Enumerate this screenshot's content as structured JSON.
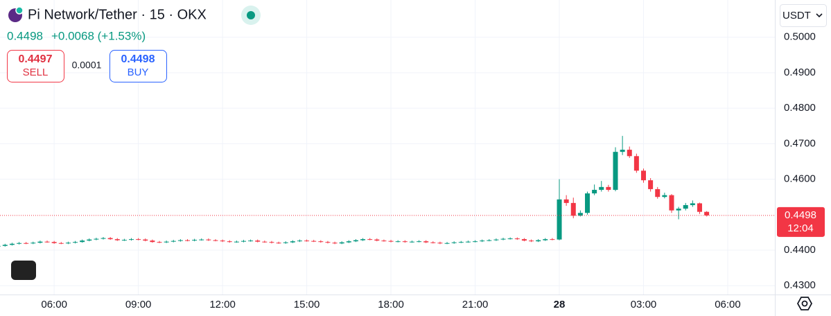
{
  "chart_data": {
    "type": "candlestick",
    "title": "Pi Network/Tether · 15 · OKX",
    "x": [
      4,
      4.25,
      4.5,
      4.75,
      5,
      5.25,
      5.5,
      5.75,
      6,
      6.25,
      6.5,
      6.75,
      7,
      7.25,
      7.5,
      7.75,
      8,
      8.25,
      8.5,
      8.75,
      9,
      9.25,
      9.5,
      9.75,
      10,
      10.25,
      10.5,
      10.75,
      11,
      11.25,
      11.5,
      11.75,
      12,
      12.25,
      12.5,
      12.75,
      13,
      13.25,
      13.5,
      13.75,
      14,
      14.25,
      14.5,
      14.75,
      15,
      15.25,
      15.5,
      15.75,
      16,
      16.25,
      16.5,
      16.75,
      17,
      17.25,
      17.5,
      17.75,
      18,
      18.25,
      18.5,
      18.75,
      19,
      19.25,
      19.5,
      19.75,
      20,
      20.25,
      20.5,
      20.75,
      21,
      21.25,
      21.5,
      21.75,
      22,
      22.25,
      22.5,
      22.75,
      23,
      23.25,
      23.5,
      23.75,
      24,
      24.25,
      24.5,
      24.75,
      25,
      25.25,
      25.5,
      25.75,
      26,
      26.25,
      26.5,
      26.75,
      27,
      27.25,
      27.5,
      27.75,
      28,
      28.25,
      28.5,
      28.75,
      29,
      29.25
    ],
    "open": [
      0.441,
      0.4412,
      0.4415,
      0.4418,
      0.442,
      0.4419,
      0.4421,
      0.4424,
      0.4423,
      0.442,
      0.4419,
      0.4421,
      0.4423,
      0.4427,
      0.443,
      0.4432,
      0.4434,
      0.4431,
      0.4428,
      0.4429,
      0.4431,
      0.443,
      0.4427,
      0.4423,
      0.4422,
      0.4424,
      0.4426,
      0.4428,
      0.4427,
      0.4429,
      0.443,
      0.4428,
      0.4427,
      0.4425,
      0.4423,
      0.4424,
      0.4426,
      0.4427,
      0.4424,
      0.4423,
      0.4421,
      0.442,
      0.4422,
      0.4425,
      0.4427,
      0.4426,
      0.4425,
      0.4423,
      0.4421,
      0.4419,
      0.4422,
      0.4425,
      0.4428,
      0.4431,
      0.443,
      0.4427,
      0.4426,
      0.4424,
      0.4425,
      0.4423,
      0.4424,
      0.4425,
      0.4422,
      0.4421,
      0.4419,
      0.442,
      0.4422,
      0.4423,
      0.4424,
      0.4425,
      0.4427,
      0.4428,
      0.443,
      0.4432,
      0.4433,
      0.4431,
      0.4427,
      0.4425,
      0.4428,
      0.4431,
      0.443,
      0.4543,
      0.4533,
      0.4497,
      0.4505,
      0.456,
      0.457,
      0.4578,
      0.457,
      0.4677,
      0.4683,
      0.4665,
      0.4624,
      0.4597,
      0.4572,
      0.455,
      0.4555,
      0.4512,
      0.4517,
      0.4527,
      0.4532,
      0.4508
    ],
    "high": [
      0.4415,
      0.4418,
      0.4421,
      0.4423,
      0.4423,
      0.4424,
      0.4427,
      0.4427,
      0.4426,
      0.4423,
      0.4424,
      0.4426,
      0.443,
      0.4433,
      0.4435,
      0.4437,
      0.4437,
      0.4434,
      0.4432,
      0.4434,
      0.4434,
      0.4433,
      0.443,
      0.4426,
      0.4427,
      0.4429,
      0.4431,
      0.4431,
      0.4432,
      0.4433,
      0.4433,
      0.4431,
      0.443,
      0.4428,
      0.4427,
      0.4429,
      0.443,
      0.443,
      0.4427,
      0.4426,
      0.4424,
      0.4425,
      0.4428,
      0.443,
      0.443,
      0.4429,
      0.4428,
      0.4426,
      0.4424,
      0.4425,
      0.4428,
      0.4431,
      0.4434,
      0.4434,
      0.4433,
      0.443,
      0.4429,
      0.4428,
      0.4428,
      0.4427,
      0.4428,
      0.4428,
      0.4425,
      0.4424,
      0.4423,
      0.4425,
      0.4426,
      0.4427,
      0.4428,
      0.443,
      0.4431,
      0.4433,
      0.4435,
      0.4436,
      0.4436,
      0.4434,
      0.443,
      0.4431,
      0.4434,
      0.4434,
      0.46,
      0.4555,
      0.4548,
      0.4512,
      0.4565,
      0.4585,
      0.4595,
      0.4584,
      0.469,
      0.4722,
      0.4692,
      0.4672,
      0.463,
      0.4603,
      0.4578,
      0.4562,
      0.4558,
      0.4522,
      0.4533,
      0.454,
      0.4534,
      0.451
    ],
    "low": [
      0.4408,
      0.441,
      0.4413,
      0.4416,
      0.4417,
      0.4417,
      0.4419,
      0.4421,
      0.4418,
      0.4417,
      0.4417,
      0.4419,
      0.4421,
      0.4425,
      0.4428,
      0.443,
      0.4429,
      0.4426,
      0.4426,
      0.4427,
      0.4428,
      0.4425,
      0.4421,
      0.442,
      0.442,
      0.4422,
      0.4424,
      0.4425,
      0.4425,
      0.4427,
      0.4426,
      0.4425,
      0.4423,
      0.4421,
      0.4421,
      0.4422,
      0.4424,
      0.4422,
      0.4421,
      0.4419,
      0.4418,
      0.4418,
      0.442,
      0.4423,
      0.4424,
      0.4423,
      0.4421,
      0.4419,
      0.4417,
      0.4417,
      0.442,
      0.4423,
      0.4426,
      0.4428,
      0.4425,
      0.4424,
      0.4422,
      0.4422,
      0.4421,
      0.4421,
      0.4422,
      0.442,
      0.4419,
      0.4417,
      0.4417,
      0.4418,
      0.442,
      0.4421,
      0.4422,
      0.4423,
      0.4425,
      0.4426,
      0.4428,
      0.443,
      0.4429,
      0.4425,
      0.4423,
      0.4423,
      0.4426,
      0.4428,
      0.4428,
      0.4525,
      0.449,
      0.4495,
      0.45,
      0.4555,
      0.4565,
      0.4565,
      0.4566,
      0.4668,
      0.466,
      0.4618,
      0.459,
      0.4565,
      0.4545,
      0.4546,
      0.4505,
      0.4487,
      0.4512,
      0.4522,
      0.4502,
      0.4495
    ],
    "close": [
      0.4412,
      0.4415,
      0.4418,
      0.442,
      0.4419,
      0.4421,
      0.4424,
      0.4423,
      0.442,
      0.4419,
      0.4421,
      0.4423,
      0.4427,
      0.443,
      0.4432,
      0.4434,
      0.4431,
      0.4428,
      0.4429,
      0.4431,
      0.443,
      0.4427,
      0.4423,
      0.4422,
      0.4424,
      0.4426,
      0.4428,
      0.4427,
      0.4429,
      0.443,
      0.4428,
      0.4427,
      0.4425,
      0.4423,
      0.4424,
      0.4426,
      0.4427,
      0.4424,
      0.4423,
      0.4421,
      0.442,
      0.4422,
      0.4425,
      0.4427,
      0.4426,
      0.4425,
      0.4423,
      0.4421,
      0.4419,
      0.4422,
      0.4425,
      0.4428,
      0.4431,
      0.443,
      0.4427,
      0.4426,
      0.4424,
      0.4425,
      0.4423,
      0.4424,
      0.4425,
      0.4422,
      0.4421,
      0.4419,
      0.442,
      0.4422,
      0.4423,
      0.4424,
      0.4425,
      0.4427,
      0.4428,
      0.443,
      0.4432,
      0.4433,
      0.4431,
      0.4427,
      0.4425,
      0.4428,
      0.4431,
      0.443,
      0.4543,
      0.4533,
      0.4497,
      0.4505,
      0.456,
      0.457,
      0.4578,
      0.457,
      0.4677,
      0.4683,
      0.4665,
      0.4624,
      0.4597,
      0.4572,
      0.455,
      0.4555,
      0.4512,
      0.4517,
      0.4527,
      0.4532,
      0.4508,
      0.4498
    ],
    "up_color": "#089981",
    "down_color": "#f23645",
    "xlim": [
      4.07,
      31.68
    ],
    "ylim": [
      0.4275,
      0.5105
    ],
    "xticks": [
      {
        "value": 6,
        "label": "06:00"
      },
      {
        "value": 9,
        "label": "09:00"
      },
      {
        "value": 12,
        "label": "12:00"
      },
      {
        "value": 15,
        "label": "15:00"
      },
      {
        "value": 18,
        "label": "18:00"
      },
      {
        "value": 21,
        "label": "21:00"
      },
      {
        "value": 24,
        "label": "28"
      },
      {
        "value": 27,
        "label": "03:00"
      },
      {
        "value": 30,
        "label": "06:00"
      }
    ],
    "yticks": [
      {
        "value": 0.43,
        "label": "0.4300"
      },
      {
        "value": 0.44,
        "label": "0.4400"
      },
      {
        "value": 0.46,
        "label": "0.4600"
      },
      {
        "value": 0.47,
        "label": "0.4700"
      },
      {
        "value": 0.48,
        "label": "0.4800"
      },
      {
        "value": 0.49,
        "label": "0.4900"
      },
      {
        "value": 0.5,
        "label": "0.5000"
      }
    ],
    "grid": true,
    "price_line": {
      "value": 0.4498,
      "countdown": "12:04",
      "color": "#f23645"
    }
  },
  "header": {
    "price": 0.4498,
    "change": "+0.0068 (+1.53%)",
    "sell": {
      "price": 0.4497,
      "label": "SELL"
    },
    "spread": 0.0001,
    "buy": {
      "price": 0.4498,
      "label": "BUY"
    },
    "currency": "USDT"
  }
}
